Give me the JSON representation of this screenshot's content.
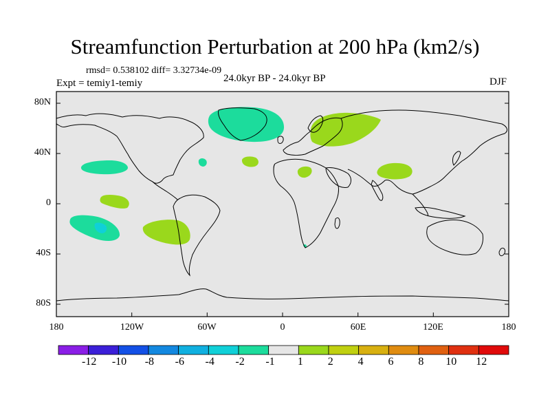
{
  "title": "Streamfunction Perturbation at 200 hPa (km2/s)",
  "stats": "rmsd= 0.538102 diff= 3.32734e-09",
  "experiment": "Expt = temiy1-temiy",
  "period": "24.0kyr BP - 24.0kyr BP",
  "season": "DJF",
  "latitude_labels": [
    "80N",
    "40N",
    "0",
    "40S",
    "80S"
  ],
  "longitude_labels": [
    "180",
    "120W",
    "60W",
    "0",
    "60E",
    "120E",
    "180"
  ],
  "colorbar": {
    "labels": [
      "-12",
      "-10",
      "-8",
      "-6",
      "-4",
      "-2",
      "-1",
      "1",
      "2",
      "4",
      "6",
      "8",
      "10",
      "12"
    ],
    "colors": [
      "#8a1ee6",
      "#3b1fd8",
      "#1350e6",
      "#1388e0",
      "#10b0e0",
      "#10d0d8",
      "#1cdc9c",
      "#e6e6e6",
      "#9ad81c",
      "#c0d010",
      "#d8b010",
      "#e08c10",
      "#e06010",
      "#e03010",
      "#e00a0a"
    ]
  },
  "colors": {
    "background": "#e6e6e6",
    "negative_small": "#1cdc9c",
    "negative_medium": "#10d0d8",
    "positive_small": "#9ad81c"
  },
  "map_data": {
    "projection": "cylindrical equidistant",
    "lon_range": [
      -180,
      180
    ],
    "lat_range": [
      -90,
      90
    ],
    "regions": [
      {
        "name": "greenland-north-atlantic",
        "sign": "negative",
        "level": "-2..-1",
        "center_lon": -30,
        "center_lat": 67
      },
      {
        "name": "western-russia",
        "sign": "positive",
        "level": "1..2",
        "center_lon": 50,
        "center_lat": 60
      },
      {
        "name": "north-pacific-subtropical",
        "sign": "negative",
        "level": "-2..-1",
        "center_lon": -150,
        "center_lat": 30
      },
      {
        "name": "atlantic-small-negative",
        "sign": "negative",
        "level": "-2..-1",
        "center_lon": -65,
        "center_lat": 34
      },
      {
        "name": "east-atlantic",
        "sign": "positive",
        "level": "1..2",
        "center_lon": -25,
        "center_lat": 35
      },
      {
        "name": "north-africa",
        "sign": "positive",
        "level": "1..2",
        "center_lon": 18,
        "center_lat": 26
      },
      {
        "name": "tibet",
        "sign": "positive",
        "level": "1..2",
        "center_lon": 90,
        "center_lat": 27
      },
      {
        "name": "equatorial-pacific",
        "sign": "positive",
        "level": "1..2",
        "center_lon": -138,
        "center_lat": 2
      },
      {
        "name": "south-pacific-west",
        "sign": "negative",
        "level": "-4..-1",
        "center_lon": -145,
        "center_lat": -25
      },
      {
        "name": "south-pacific-east",
        "sign": "positive",
        "level": "1..2",
        "center_lon": -92,
        "center_lat": -30
      }
    ]
  }
}
